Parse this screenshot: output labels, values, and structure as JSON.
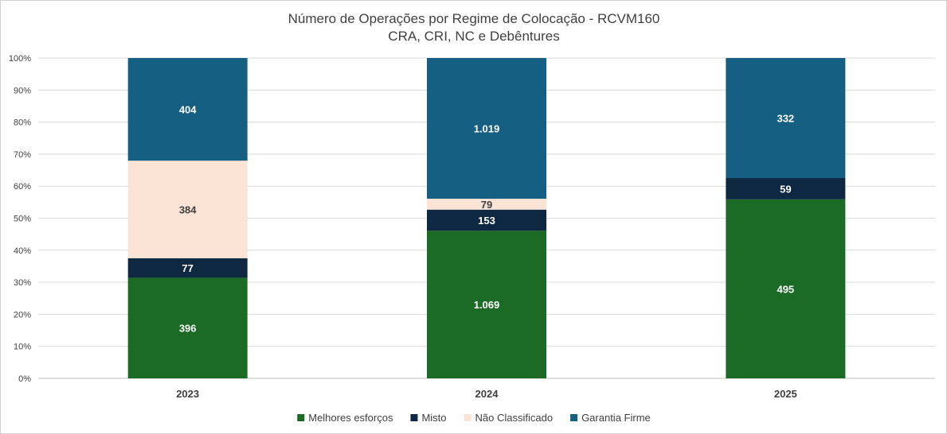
{
  "chart_data": {
    "type": "bar",
    "stacked": "percent",
    "title": "Número de Operações por Regime de Colocação - RCVM160",
    "subtitle": "CRA, CRI, NC e Debêntures",
    "categories": [
      "2023",
      "2024",
      "2025"
    ],
    "series": [
      {
        "name": "Melhores esforços",
        "color": "#1b6b26",
        "label_color": "#ffffff",
        "values": [
          396,
          1069,
          495
        ],
        "labels": [
          "396",
          "1.069",
          "495"
        ]
      },
      {
        "name": "Misto",
        "color": "#0e2841",
        "label_color": "#ffffff",
        "values": [
          77,
          153,
          59
        ],
        "labels": [
          "77",
          "153",
          "59"
        ]
      },
      {
        "name": "Não Classificado",
        "color": "#fbe3d6",
        "label_color": "#404040",
        "values": [
          384,
          79,
          0
        ],
        "labels": [
          "384",
          "79",
          ""
        ]
      },
      {
        "name": "Garantia Firme",
        "color": "#156082",
        "label_color": "#ffffff",
        "values": [
          404,
          1019,
          332
        ],
        "labels": [
          "404",
          "1.019",
          "332"
        ]
      }
    ],
    "y_ticks": [
      "0%",
      "10%",
      "20%",
      "30%",
      "40%",
      "50%",
      "60%",
      "70%",
      "80%",
      "90%",
      "100%"
    ],
    "ylim": [
      0,
      100
    ],
    "grid": true,
    "legend_position": "bottom"
  }
}
